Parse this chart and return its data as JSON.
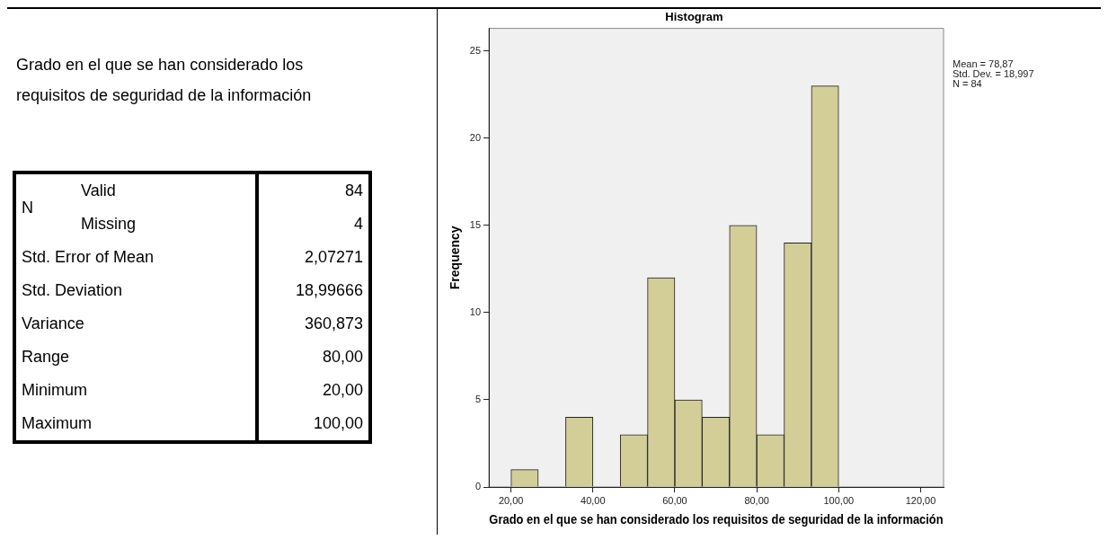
{
  "chart_data": [
    {
      "type": "other",
      "title": "Grado en el que se han considerado los requisitos de seguridad de la información",
      "annotations": [
        "N",
        "Valid",
        "84",
        "Missing",
        "4",
        "Std. Error of Mean",
        "2,07271",
        "Std. Deviation",
        "18,99666",
        "Variance",
        "360,873",
        "Range",
        "80,00",
        "Minimum",
        "20,00",
        "Maximum",
        "100,00"
      ]
    },
    {
      "type": "histogram",
      "title": "Histogram",
      "xlabel": "Grado en el que se han considerado los requisitos de seguridad de la información",
      "ylabel": "Frequency",
      "bins": [
        20,
        26.67,
        33.33,
        40,
        46.67,
        53.33,
        60,
        66.67,
        73.33,
        80,
        86.67,
        93.33,
        100
      ],
      "values": [
        1,
        0,
        4,
        0,
        3,
        12,
        5,
        4,
        15,
        3,
        14,
        23
      ],
      "color": "#d3ce97",
      "xlim": [
        14.6,
        125.6
      ],
      "xticks": [
        {
          "value": 20,
          "label": "20,00"
        },
        {
          "value": 40,
          "label": "40,00"
        },
        {
          "value": 60,
          "label": "60,00"
        },
        {
          "value": 80,
          "label": "80,00"
        },
        {
          "value": 100,
          "label": "100,00"
        },
        {
          "value": 120,
          "label": "120,00"
        }
      ],
      "ylim": [
        0,
        26.3
      ],
      "yticks": [
        0,
        5,
        10,
        15,
        20,
        25
      ],
      "annotations": [
        "Mean = 78,87",
        "Std. Dev. = 18,997",
        "N = 84"
      ],
      "grid": false,
      "legend": false
    }
  ]
}
